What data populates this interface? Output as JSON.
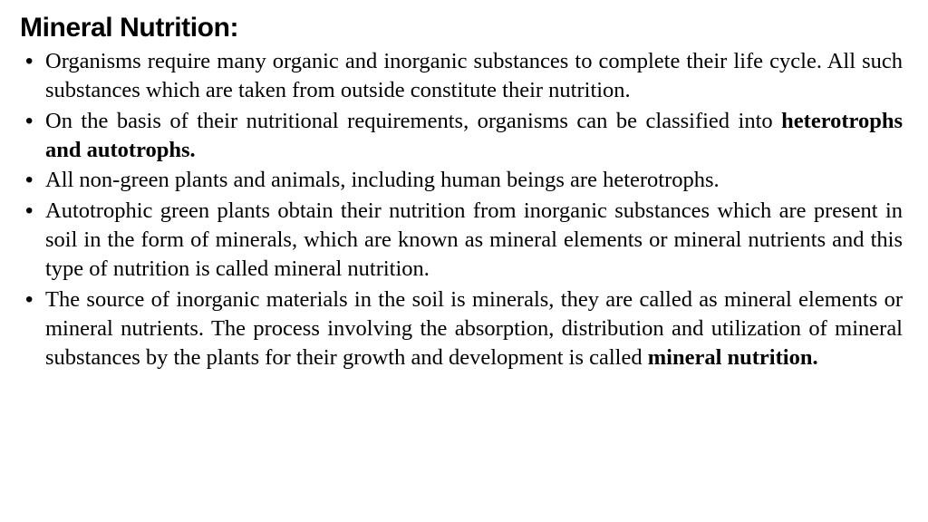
{
  "title": "Mineral Nutrition:",
  "bullets": [
    {
      "pre": "Organisms require many organic and inorganic substances to complete their life cycle. All such substances which are taken from outside constitute their nutrition.",
      "bold": "",
      "post": ""
    },
    {
      "pre": "On the basis of their nutritional requirements, organisms can be classified into ",
      "bold": "heterotrophs and autotrophs.",
      "post": ""
    },
    {
      "pre": "All non-green plants and animals, including human beings are heterotrophs.",
      "bold": "",
      "post": ""
    },
    {
      "pre": "Autotrophic green plants obtain their nutrition from inorganic substances which are present in soil in the form of minerals, which are known as mineral elements or mineral nutrients and this type of nutrition is called mineral nutrition.",
      "bold": "",
      "post": ""
    },
    {
      "pre": "The source of inorganic materials in the soil is minerals, they are called as mineral elements or mineral nutrients. The process involving the absorption, distribution and utilization of mineral substances by the plants for their growth and development is called ",
      "bold": "mineral nutrition.",
      "post": ""
    }
  ],
  "style": {
    "title_fontsize": 30,
    "title_weight": 900,
    "title_font": "Arial Black",
    "body_fontsize": 24.5,
    "body_font": "Times New Roman",
    "text_color": "#000000",
    "background_color": "#ffffff",
    "line_height": 1.32,
    "text_align": "justify"
  }
}
